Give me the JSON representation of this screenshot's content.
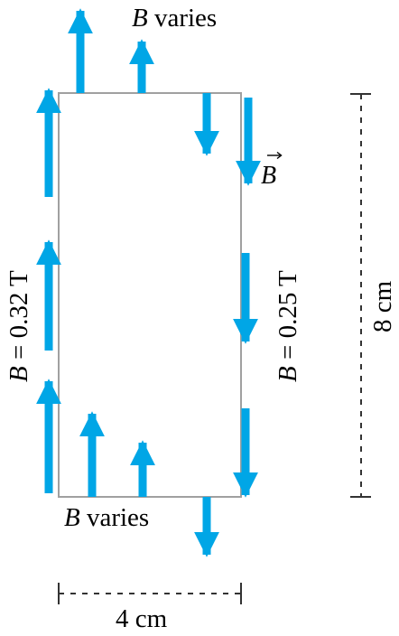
{
  "labels": {
    "top_b": "B",
    "top_varies": "varies",
    "bottom_b": "B",
    "bottom_varies": "varies",
    "left_b": "B",
    "left_value": "= 0.32 T",
    "right_b": "B",
    "right_value": "= 0.25 T",
    "field_vector": "B",
    "width": "4 cm",
    "height": "8 cm"
  },
  "colors": {
    "arrow": "#00a6e6",
    "loop": "#a0a0a0",
    "dimension": "#333333",
    "text": "#000000"
  },
  "icons": {
    "field_arrow": "field-arrow-icon",
    "vector_accent": "vector-arrow-accent-icon"
  }
}
